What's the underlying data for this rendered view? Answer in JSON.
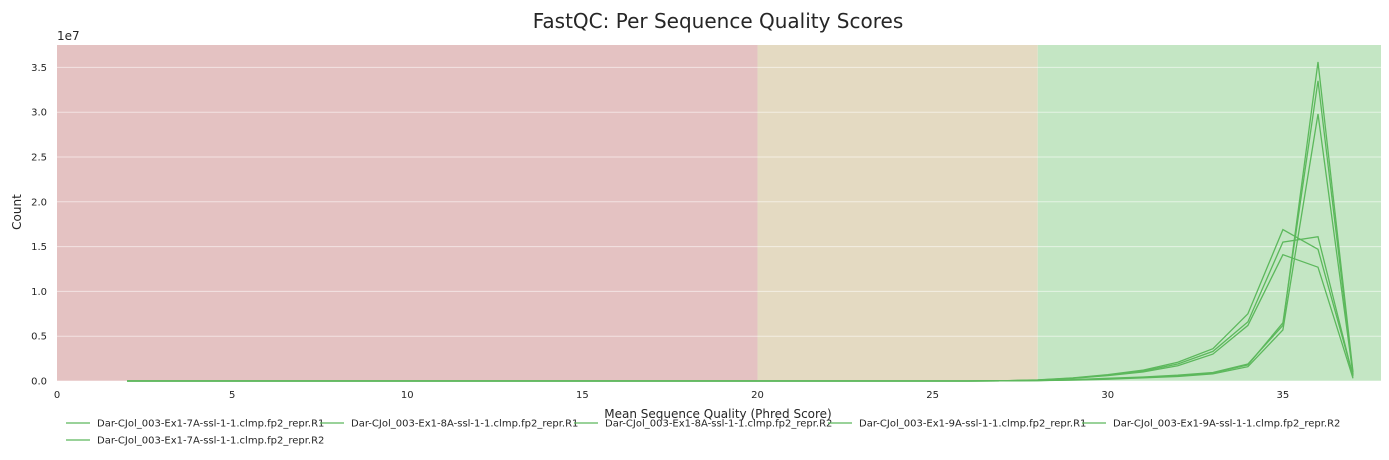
{
  "chart_data": {
    "type": "line",
    "title": "FastQC: Per Sequence Quality Scores",
    "xlabel": "Mean Sequence Quality (Phred Score)",
    "ylabel": "Count",
    "y_exponent_label": "1e7",
    "xlim": [
      0,
      37.8
    ],
    "ylim": [
      0,
      37500000
    ],
    "x_ticks": [
      0,
      5,
      10,
      15,
      20,
      25,
      30,
      35
    ],
    "x_tick_labels": [
      "0",
      "5",
      "10",
      "15",
      "20",
      "25",
      "30",
      "35"
    ],
    "y_ticks": [
      0,
      5000000,
      10000000,
      15000000,
      20000000,
      25000000,
      30000000,
      35000000
    ],
    "y_tick_labels": [
      "0.0",
      "0.5",
      "1.0",
      "1.5",
      "2.0",
      "2.5",
      "3.0",
      "3.5"
    ],
    "grid": true,
    "legend_position": "bottom",
    "background_bands": [
      {
        "from": 0,
        "to": 20,
        "color": "#e4c2c2"
      },
      {
        "from": 20,
        "to": 28,
        "color": "#e4dac2"
      },
      {
        "from": 28,
        "to": 37.8,
        "color": "#c4e6c4"
      }
    ],
    "line_color": "#5cb85c",
    "x": [
      2,
      3,
      4,
      5,
      6,
      7,
      8,
      9,
      10,
      11,
      12,
      13,
      14,
      15,
      16,
      17,
      18,
      19,
      20,
      21,
      22,
      23,
      24,
      25,
      26,
      27,
      28,
      29,
      30,
      31,
      32,
      33,
      34,
      35,
      36,
      37
    ],
    "series": [
      {
        "name": "Dar-CJol_003-Ex1-7A-ssl-1-1.clmp.fp2_repr.R1",
        "values": [
          0,
          0,
          0,
          0,
          0,
          0,
          0,
          0,
          0,
          0,
          0,
          0,
          0,
          0,
          0,
          0,
          0,
          0,
          0,
          0,
          0,
          0,
          0,
          0,
          0,
          10000,
          50000,
          120000,
          250000,
          400000,
          600000,
          900000,
          1800000,
          6500000,
          33500000,
          800000
        ]
      },
      {
        "name": "Dar-CJol_003-Ex1-8A-ssl-1-1.clmp.fp2_repr.R1",
        "values": [
          0,
          0,
          0,
          0,
          0,
          0,
          0,
          0,
          0,
          0,
          0,
          0,
          0,
          0,
          0,
          0,
          0,
          0,
          0,
          0,
          0,
          0,
          0,
          0,
          0,
          20000,
          100000,
          300000,
          600000,
          1000000,
          1700000,
          3000000,
          6200000,
          14100000,
          12700000,
          300000
        ]
      },
      {
        "name": "Dar-CJol_003-Ex1-8A-ssl-1-1.clmp.fp2_repr.R2",
        "values": [
          0,
          0,
          0,
          0,
          0,
          0,
          0,
          0,
          0,
          0,
          0,
          0,
          0,
          0,
          0,
          0,
          0,
          0,
          0,
          0,
          0,
          0,
          0,
          0,
          0,
          15000,
          60000,
          150000,
          300000,
          450000,
          650000,
          950000,
          1900000,
          6200000,
          35600000,
          1000000
        ]
      },
      {
        "name": "Dar-CJol_003-Ex1-9A-ssl-1-1.clmp.fp2_repr.R1",
        "values": [
          0,
          0,
          0,
          0,
          0,
          0,
          0,
          0,
          0,
          0,
          0,
          0,
          0,
          0,
          0,
          0,
          0,
          0,
          0,
          0,
          0,
          0,
          0,
          0,
          0,
          25000,
          120000,
          350000,
          700000,
          1200000,
          2100000,
          3600000,
          7500000,
          16900000,
          14700000,
          600000
        ]
      },
      {
        "name": "Dar-CJol_003-Ex1-9A-ssl-1-1.clmp.fp2_repr.R2",
        "values": [
          0,
          0,
          0,
          0,
          0,
          0,
          0,
          0,
          0,
          0,
          0,
          0,
          0,
          0,
          0,
          0,
          0,
          0,
          0,
          0,
          0,
          0,
          0,
          0,
          0,
          20000,
          110000,
          320000,
          650000,
          1100000,
          1900000,
          3300000,
          6600000,
          15500000,
          16100000,
          500000
        ]
      },
      {
        "name": "Dar-CJol_003-Ex1-7A-ssl-1-1.clmp.fp2_repr.R2",
        "values": [
          0,
          0,
          0,
          0,
          0,
          0,
          0,
          0,
          0,
          0,
          0,
          0,
          0,
          0,
          0,
          0,
          0,
          0,
          0,
          0,
          0,
          0,
          0,
          0,
          0,
          10000,
          40000,
          100000,
          200000,
          350000,
          500000,
          800000,
          1600000,
          5700000,
          29800000,
          700000
        ]
      }
    ]
  }
}
